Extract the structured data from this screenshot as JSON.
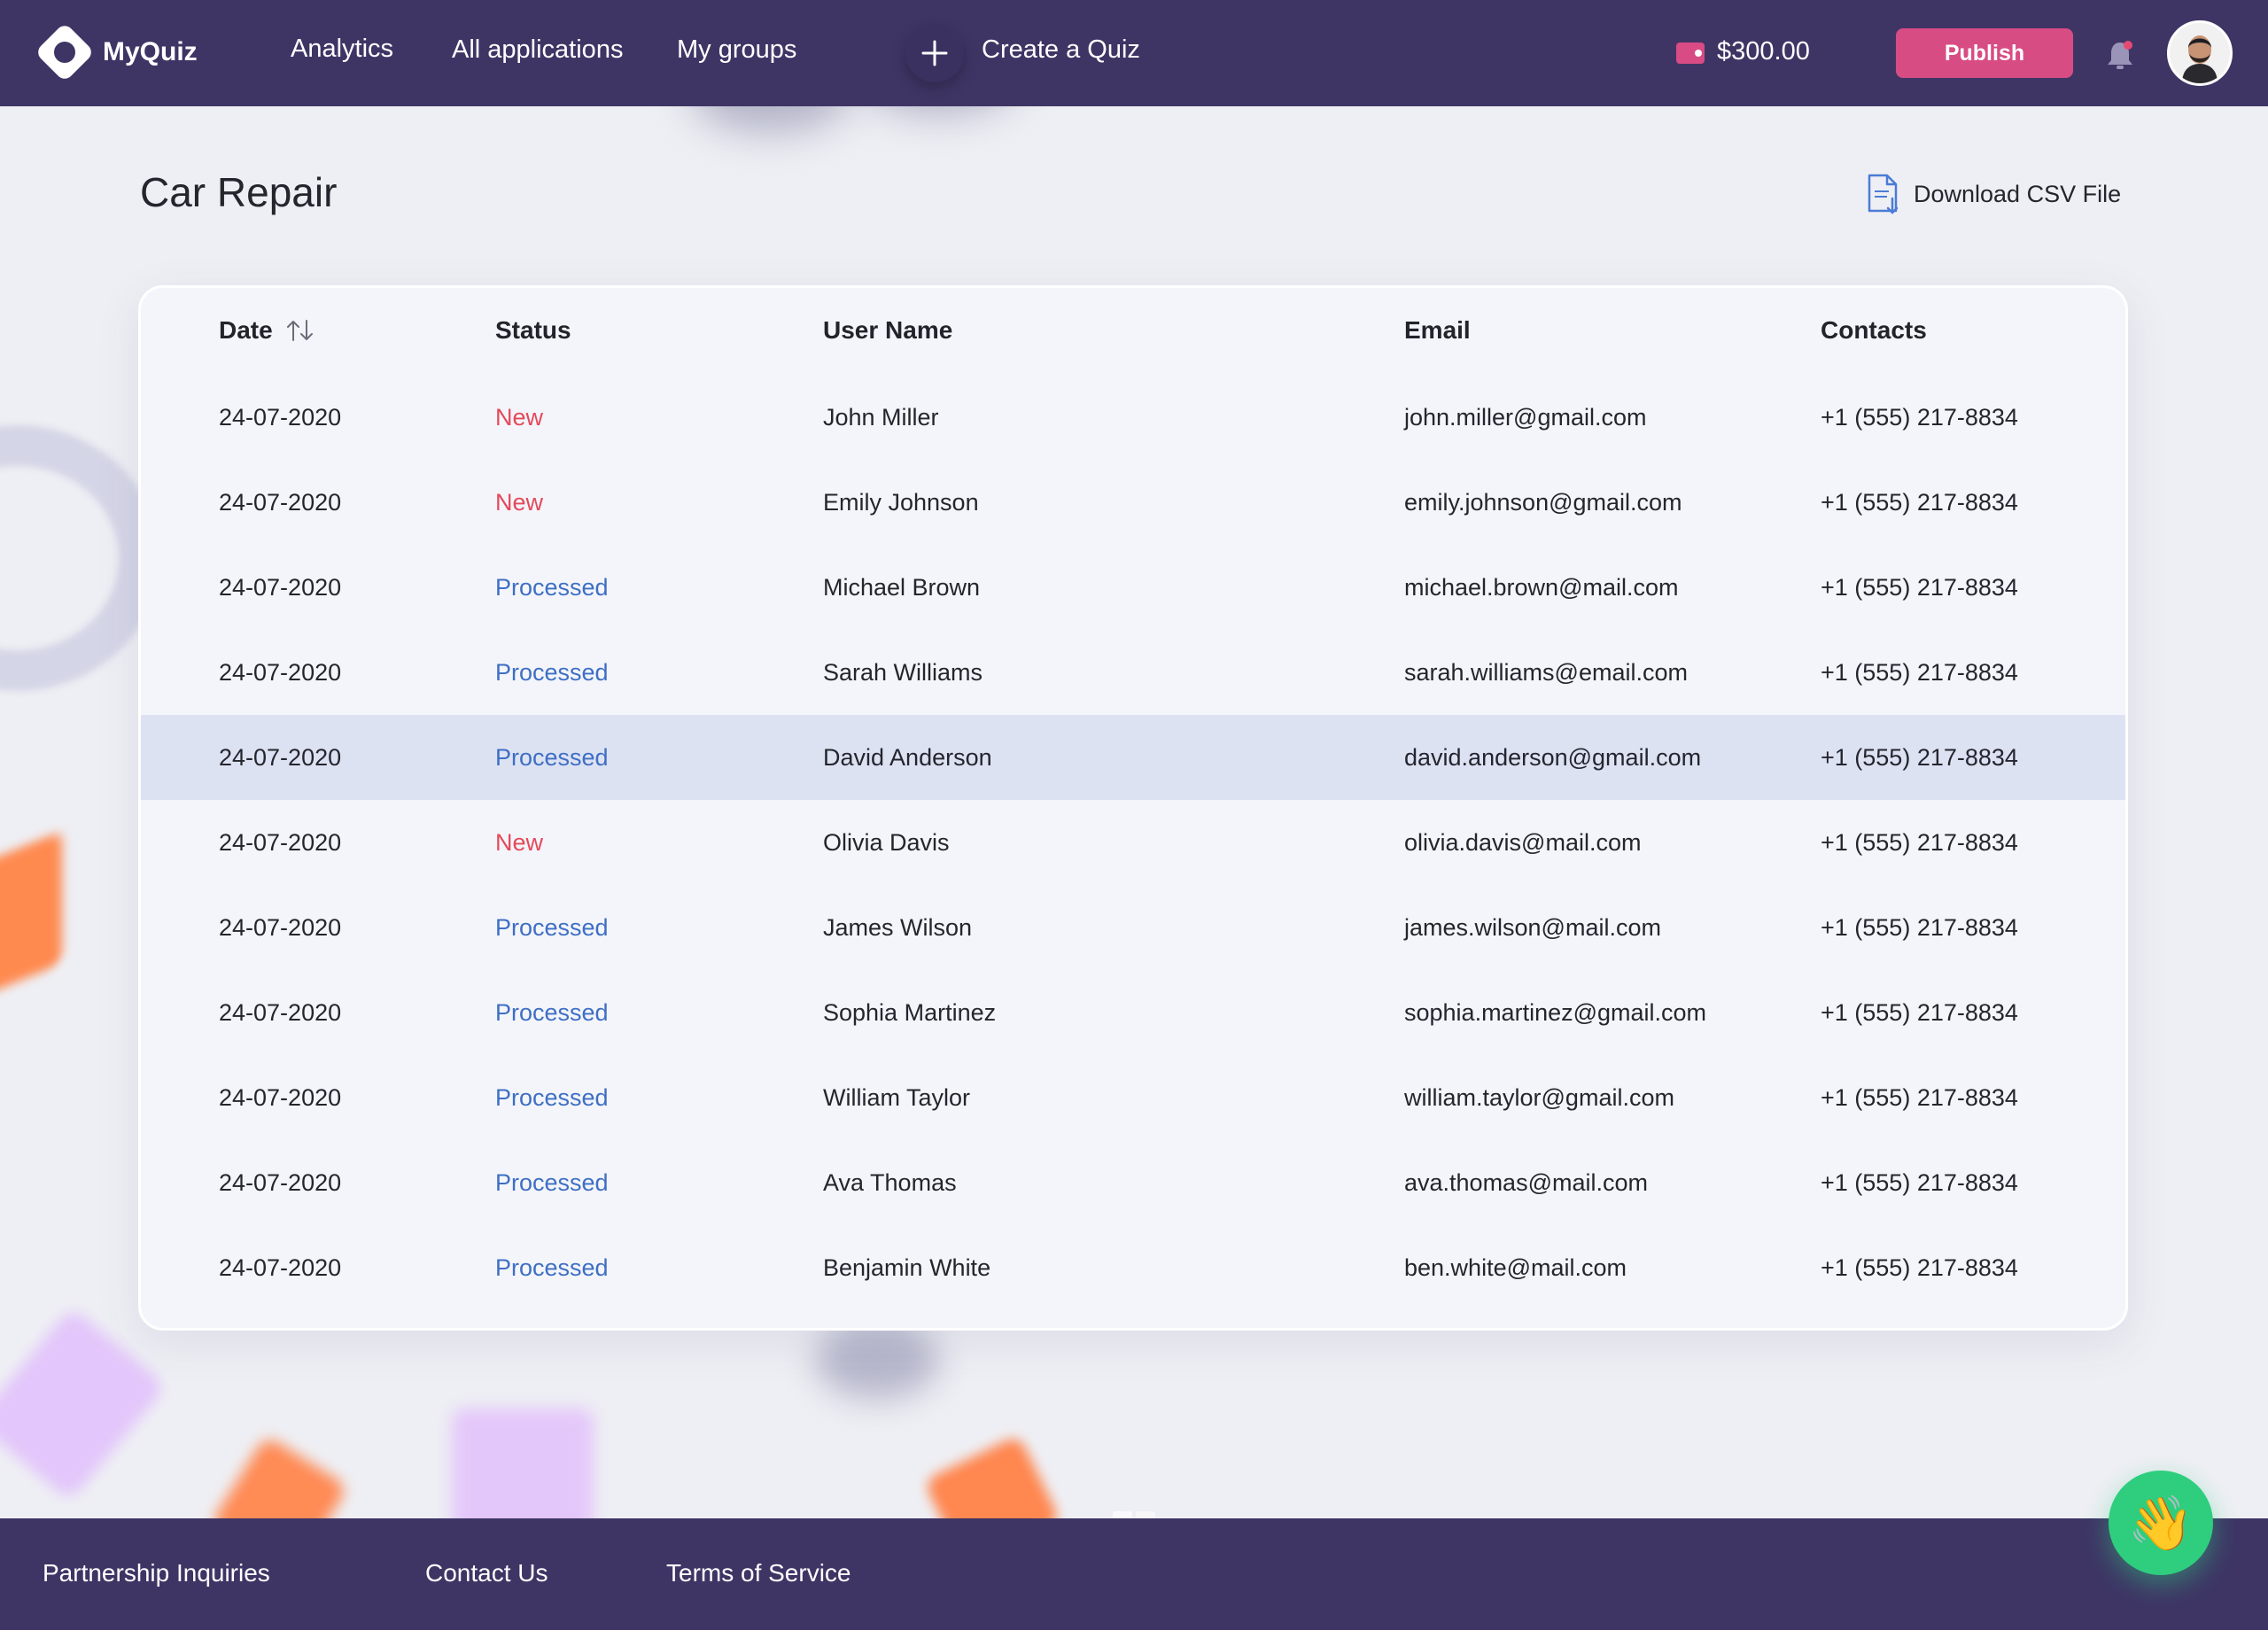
{
  "app": {
    "name": "MyQuiz"
  },
  "nav": {
    "analytics": "Analytics",
    "all_applications": "All applications",
    "my_groups": "My groups",
    "create_quiz": "Create a Quiz"
  },
  "account": {
    "balance": "$300.00",
    "publish_label": "Publish"
  },
  "page": {
    "title": "Car Repair",
    "download_label": "Download CSV File"
  },
  "table": {
    "headers": {
      "date": "Date",
      "status": "Status",
      "user_name": "User Name",
      "email": "Email",
      "contacts": "Contacts"
    },
    "rows": [
      {
        "date": "24-07-2020",
        "status": "New",
        "user": "John Miller",
        "email": "john.miller@gmail.com",
        "contact": "+1 (555) 217-8834"
      },
      {
        "date": "24-07-2020",
        "status": "New",
        "user": "Emily Johnson",
        "email": "emily.johnson@gmail.com",
        "contact": "+1 (555) 217-8834"
      },
      {
        "date": "24-07-2020",
        "status": "Processed",
        "user": "Michael Brown",
        "email": "michael.brown@mail.com",
        "contact": "+1 (555) 217-8834"
      },
      {
        "date": "24-07-2020",
        "status": "Processed",
        "user": "Sarah Williams",
        "email": "sarah.williams@email.com",
        "contact": "+1 (555) 217-8834"
      },
      {
        "date": "24-07-2020",
        "status": "Processed",
        "user": "David Anderson",
        "email": "david.anderson@gmail.com",
        "contact": "+1 (555) 217-8834",
        "highlighted": true
      },
      {
        "date": "24-07-2020",
        "status": "New",
        "user": "Olivia Davis",
        "email": "olivia.davis@mail.com",
        "contact": "+1 (555) 217-8834"
      },
      {
        "date": "24-07-2020",
        "status": "Processed",
        "user": "James Wilson",
        "email": "james.wilson@mail.com",
        "contact": "+1 (555) 217-8834"
      },
      {
        "date": "24-07-2020",
        "status": "Processed",
        "user": "Sophia Martinez",
        "email": "sophia.martinez@gmail.com",
        "contact": "+1 (555) 217-8834"
      },
      {
        "date": "24-07-2020",
        "status": "Processed",
        "user": "William Taylor",
        "email": "william.taylor@gmail.com",
        "contact": "+1 (555) 217-8834"
      },
      {
        "date": "24-07-2020",
        "status": "Processed",
        "user": "Ava Thomas",
        "email": "ava.thomas@mail.com",
        "contact": "+1 (555) 217-8834"
      },
      {
        "date": "24-07-2020",
        "status": "Processed",
        "user": "Benjamin White",
        "email": "ben.white@mail.com",
        "contact": "+1 (555) 217-8834"
      }
    ]
  },
  "footer": {
    "partnership": "Partnership Inquiries",
    "contact": "Contact Us",
    "terms": "Terms of Service"
  },
  "icons": {
    "logo": "myquiz-logo-icon",
    "plus": "plus-icon",
    "wallet": "wallet-icon",
    "bell": "bell-icon",
    "avatar": "user-avatar",
    "download": "csv-file-icon",
    "sort": "sort-arrows-icon",
    "chat": "waving-hand-icon"
  },
  "colors": {
    "header_bg": "#3e3565",
    "publish": "#d84c84",
    "status_new": "#e4495b",
    "status_processed": "#3e6fc4",
    "row_highlight": "#dde2f3",
    "chat_button": "#2fce7e"
  }
}
